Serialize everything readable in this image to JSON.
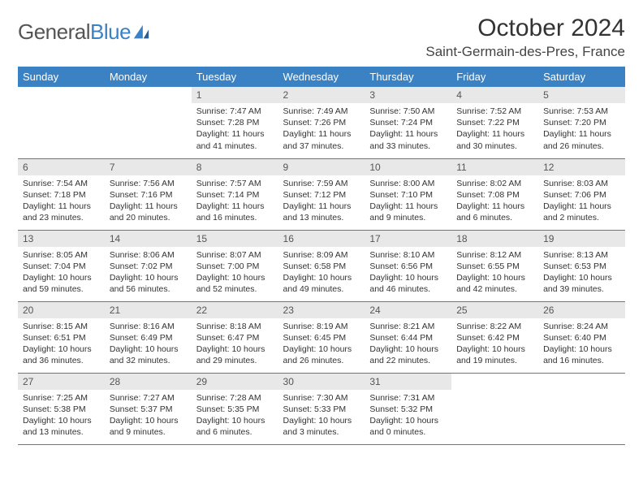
{
  "logo": {
    "word1": "General",
    "word2": "Blue"
  },
  "title": "October 2024",
  "location": "Saint-Germain-des-Pres, France",
  "colors": {
    "header_bg": "#3b82c4",
    "daynum_bg": "#e8e8e8",
    "border": "#3b82c4",
    "text": "#333333"
  },
  "weekdays": [
    "Sunday",
    "Monday",
    "Tuesday",
    "Wednesday",
    "Thursday",
    "Friday",
    "Saturday"
  ],
  "weeks": [
    [
      null,
      null,
      {
        "n": "1",
        "sr": "7:47 AM",
        "ss": "7:28 PM",
        "dl": "11 hours and 41 minutes."
      },
      {
        "n": "2",
        "sr": "7:49 AM",
        "ss": "7:26 PM",
        "dl": "11 hours and 37 minutes."
      },
      {
        "n": "3",
        "sr": "7:50 AM",
        "ss": "7:24 PM",
        "dl": "11 hours and 33 minutes."
      },
      {
        "n": "4",
        "sr": "7:52 AM",
        "ss": "7:22 PM",
        "dl": "11 hours and 30 minutes."
      },
      {
        "n": "5",
        "sr": "7:53 AM",
        "ss": "7:20 PM",
        "dl": "11 hours and 26 minutes."
      }
    ],
    [
      {
        "n": "6",
        "sr": "7:54 AM",
        "ss": "7:18 PM",
        "dl": "11 hours and 23 minutes."
      },
      {
        "n": "7",
        "sr": "7:56 AM",
        "ss": "7:16 PM",
        "dl": "11 hours and 20 minutes."
      },
      {
        "n": "8",
        "sr": "7:57 AM",
        "ss": "7:14 PM",
        "dl": "11 hours and 16 minutes."
      },
      {
        "n": "9",
        "sr": "7:59 AM",
        "ss": "7:12 PM",
        "dl": "11 hours and 13 minutes."
      },
      {
        "n": "10",
        "sr": "8:00 AM",
        "ss": "7:10 PM",
        "dl": "11 hours and 9 minutes."
      },
      {
        "n": "11",
        "sr": "8:02 AM",
        "ss": "7:08 PM",
        "dl": "11 hours and 6 minutes."
      },
      {
        "n": "12",
        "sr": "8:03 AM",
        "ss": "7:06 PM",
        "dl": "11 hours and 2 minutes."
      }
    ],
    [
      {
        "n": "13",
        "sr": "8:05 AM",
        "ss": "7:04 PM",
        "dl": "10 hours and 59 minutes."
      },
      {
        "n": "14",
        "sr": "8:06 AM",
        "ss": "7:02 PM",
        "dl": "10 hours and 56 minutes."
      },
      {
        "n": "15",
        "sr": "8:07 AM",
        "ss": "7:00 PM",
        "dl": "10 hours and 52 minutes."
      },
      {
        "n": "16",
        "sr": "8:09 AM",
        "ss": "6:58 PM",
        "dl": "10 hours and 49 minutes."
      },
      {
        "n": "17",
        "sr": "8:10 AM",
        "ss": "6:56 PM",
        "dl": "10 hours and 46 minutes."
      },
      {
        "n": "18",
        "sr": "8:12 AM",
        "ss": "6:55 PM",
        "dl": "10 hours and 42 minutes."
      },
      {
        "n": "19",
        "sr": "8:13 AM",
        "ss": "6:53 PM",
        "dl": "10 hours and 39 minutes."
      }
    ],
    [
      {
        "n": "20",
        "sr": "8:15 AM",
        "ss": "6:51 PM",
        "dl": "10 hours and 36 minutes."
      },
      {
        "n": "21",
        "sr": "8:16 AM",
        "ss": "6:49 PM",
        "dl": "10 hours and 32 minutes."
      },
      {
        "n": "22",
        "sr": "8:18 AM",
        "ss": "6:47 PM",
        "dl": "10 hours and 29 minutes."
      },
      {
        "n": "23",
        "sr": "8:19 AM",
        "ss": "6:45 PM",
        "dl": "10 hours and 26 minutes."
      },
      {
        "n": "24",
        "sr": "8:21 AM",
        "ss": "6:44 PM",
        "dl": "10 hours and 22 minutes."
      },
      {
        "n": "25",
        "sr": "8:22 AM",
        "ss": "6:42 PM",
        "dl": "10 hours and 19 minutes."
      },
      {
        "n": "26",
        "sr": "8:24 AM",
        "ss": "6:40 PM",
        "dl": "10 hours and 16 minutes."
      }
    ],
    [
      {
        "n": "27",
        "sr": "7:25 AM",
        "ss": "5:38 PM",
        "dl": "10 hours and 13 minutes."
      },
      {
        "n": "28",
        "sr": "7:27 AM",
        "ss": "5:37 PM",
        "dl": "10 hours and 9 minutes."
      },
      {
        "n": "29",
        "sr": "7:28 AM",
        "ss": "5:35 PM",
        "dl": "10 hours and 6 minutes."
      },
      {
        "n": "30",
        "sr": "7:30 AM",
        "ss": "5:33 PM",
        "dl": "10 hours and 3 minutes."
      },
      {
        "n": "31",
        "sr": "7:31 AM",
        "ss": "5:32 PM",
        "dl": "10 hours and 0 minutes."
      },
      null,
      null
    ]
  ],
  "labels": {
    "sunrise": "Sunrise: ",
    "sunset": "Sunset: ",
    "daylight": "Daylight: "
  }
}
